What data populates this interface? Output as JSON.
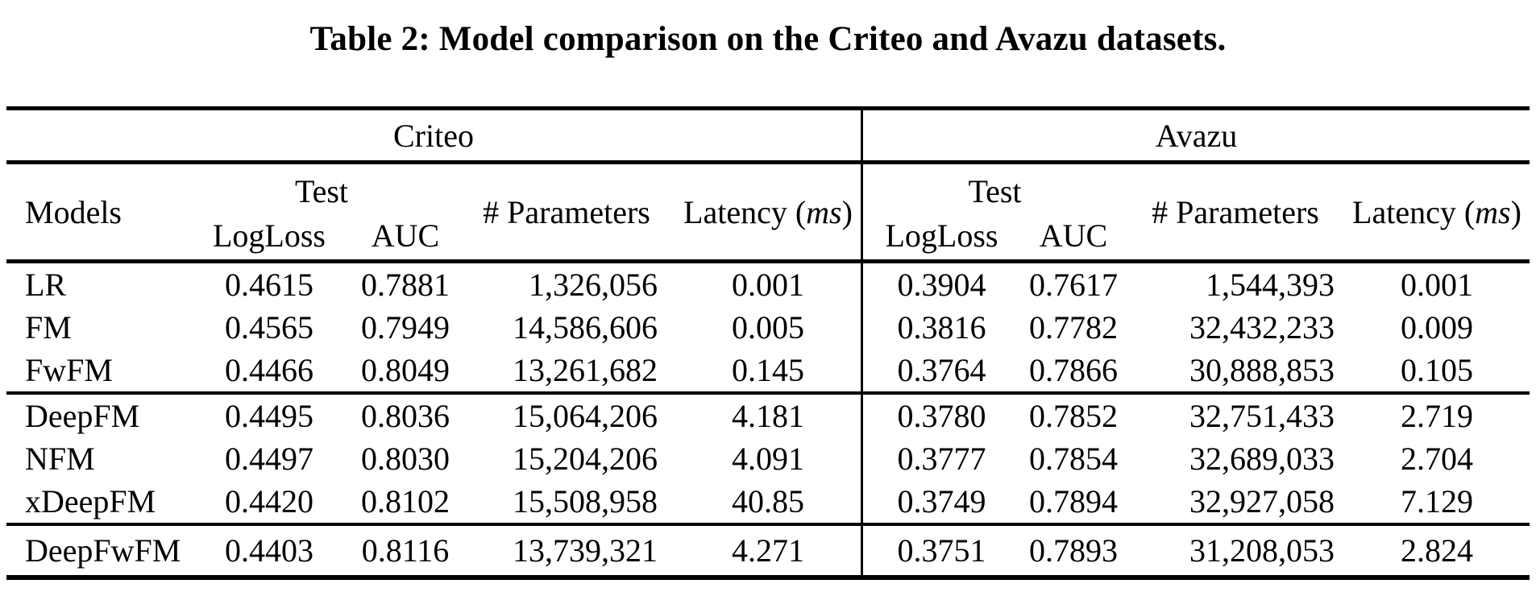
{
  "title": "Table 2: Model comparison on the Criteo and Avazu datasets.",
  "groups": {
    "criteo": "Criteo",
    "avazu": "Avazu"
  },
  "columns": {
    "models": "Models",
    "test": "Test",
    "logloss": "LogLoss",
    "auc": "AUC",
    "parameters": "# Parameters",
    "latency_prefix": "Latency (",
    "latency_unit": "ms",
    "latency_suffix": ")"
  },
  "body": {
    "group1": [
      {
        "model": "LR",
        "c_logloss": "0.4615",
        "c_auc": "0.7881",
        "c_params": "1,326,056",
        "c_latency": "0.001",
        "a_logloss": "0.3904",
        "a_auc": "0.7617",
        "a_params": "1,544,393",
        "a_latency": "0.001"
      },
      {
        "model": "FM",
        "c_logloss": "0.4565",
        "c_auc": "0.7949",
        "c_params": "14,586,606",
        "c_latency": "0.005",
        "a_logloss": "0.3816",
        "a_auc": "0.7782",
        "a_params": "32,432,233",
        "a_latency": "0.009"
      },
      {
        "model": "FwFM",
        "c_logloss": "0.4466",
        "c_auc": "0.8049",
        "c_params": "13,261,682",
        "c_latency": "0.145",
        "a_logloss": "0.3764",
        "a_auc": "0.7866",
        "a_params": "30,888,853",
        "a_latency": "0.105"
      }
    ],
    "group2": [
      {
        "model": "DeepFM",
        "c_logloss": "0.4495",
        "c_auc": "0.8036",
        "c_params": "15,064,206",
        "c_latency": "4.181",
        "a_logloss": "0.3780",
        "a_auc": "0.7852",
        "a_params": "32,751,433",
        "a_latency": "2.719"
      },
      {
        "model": "NFM",
        "c_logloss": "0.4497",
        "c_auc": "0.8030",
        "c_params": "15,204,206",
        "c_latency": "4.091",
        "a_logloss": "0.3777",
        "a_auc": "0.7854",
        "a_params": "32,689,033",
        "a_latency": "2.704"
      },
      {
        "model": "xDeepFM",
        "c_logloss": "0.4420",
        "c_auc": "0.8102",
        "c_params": "15,508,958",
        "c_latency": "40.85",
        "a_logloss": "0.3749",
        "a_auc": "0.7894",
        "a_params": "32,927,058",
        "a_latency": "7.129"
      }
    ],
    "group3": [
      {
        "model": "DeepFwFM",
        "c_logloss": "0.4403",
        "c_auc": "0.8116",
        "c_params": "13,739,321",
        "c_latency": "4.271",
        "a_logloss": "0.3751",
        "a_auc": "0.7893",
        "a_params": "31,208,053",
        "a_latency": "2.824"
      }
    ]
  }
}
